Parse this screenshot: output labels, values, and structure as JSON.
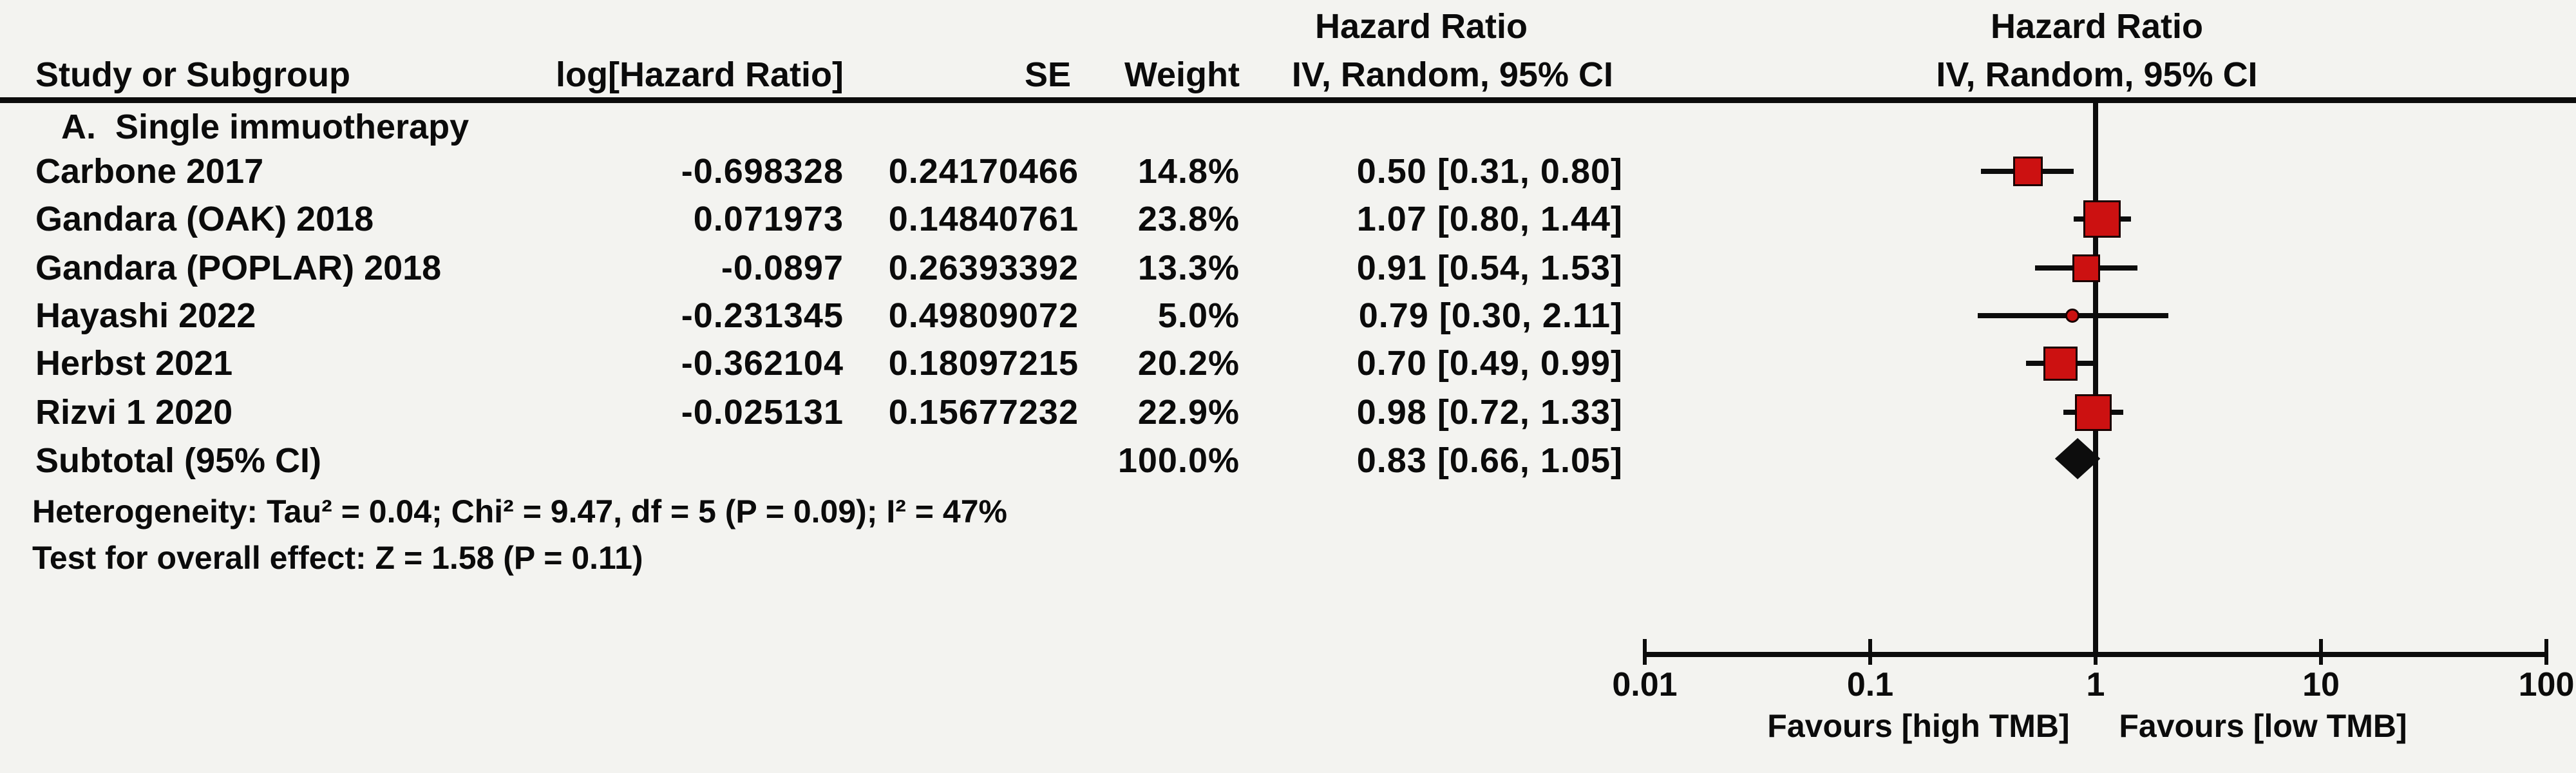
{
  "header": {
    "effect_title_left": "Hazard Ratio",
    "study_col": "Study or Subgroup",
    "log_hr_col": "log[Hazard Ratio]",
    "se_col": "SE",
    "weight_col": "Weight",
    "ci_col": "IV, Random, 95% CI",
    "effect_title_right": "Hazard Ratio",
    "method_right": "IV, Random, 95% CI"
  },
  "colors": {
    "marker_red": "#cc1111",
    "diamond_black": "#0d0d0d",
    "line_black": "#0c0c0c",
    "background": "#f3f3f0"
  },
  "chart_data": {
    "type": "scatter",
    "subtype": "forest_plot_meta_analysis",
    "title": "Hazard Ratio",
    "method": "IV, Random, 95% CI",
    "x_scale": "log10",
    "x_range": [
      0.01,
      100
    ],
    "x_ticks": [
      0.01,
      0.1,
      1,
      10,
      100
    ],
    "x_tick_labels": [
      "0.01",
      "0.1",
      "1",
      "10",
      "100"
    ],
    "favours_left": "Favours [high TMB]",
    "favours_right": "Favours [low TMB]",
    "subgroup": "A.  Single immuotherapy",
    "studies": [
      {
        "name": "Carbone 2017",
        "log_hr": "-0.698328",
        "se": "0.24170466",
        "weight": "14.8%",
        "weight_pct": 14.8,
        "hr": 0.5,
        "ci_low": 0.31,
        "ci_high": 0.8,
        "ci_text": "0.50 [0.31, 0.80]"
      },
      {
        "name": "Gandara (OAK) 2018",
        "log_hr": "0.071973",
        "se": "0.14840761",
        "weight": "23.8%",
        "weight_pct": 23.8,
        "hr": 1.07,
        "ci_low": 0.8,
        "ci_high": 1.44,
        "ci_text": "1.07 [0.80, 1.44]"
      },
      {
        "name": "Gandara (POPLAR) 2018",
        "log_hr": "-0.0897",
        "se": "0.26393392",
        "weight": "13.3%",
        "weight_pct": 13.3,
        "hr": 0.91,
        "ci_low": 0.54,
        "ci_high": 1.53,
        "ci_text": "0.91 [0.54, 1.53]"
      },
      {
        "name": "Hayashi 2022",
        "log_hr": "-0.231345",
        "se": "0.49809072",
        "weight": "5.0%",
        "weight_pct": 5.0,
        "hr": 0.79,
        "ci_low": 0.3,
        "ci_high": 2.11,
        "ci_text": "0.79 [0.30, 2.11]"
      },
      {
        "name": "Herbst 2021",
        "log_hr": "-0.362104",
        "se": "0.18097215",
        "weight": "20.2%",
        "weight_pct": 20.2,
        "hr": 0.7,
        "ci_low": 0.49,
        "ci_high": 0.99,
        "ci_text": "0.70 [0.49, 0.99]"
      },
      {
        "name": "Rizvi 1 2020",
        "log_hr": "-0.025131",
        "se": "0.15677232",
        "weight": "22.9%",
        "weight_pct": 22.9,
        "hr": 0.98,
        "ci_low": 0.72,
        "ci_high": 1.33,
        "ci_text": "0.98 [0.72, 1.33]"
      }
    ],
    "subtotal": {
      "label": "Subtotal (95% CI)",
      "weight": "100.0%",
      "hr": 0.83,
      "ci_low": 0.66,
      "ci_high": 1.05,
      "ci_text": "0.83 [0.66, 1.05]"
    },
    "heterogeneity": "Heterogeneity: Tau² = 0.04; Chi² = 9.47, df = 5 (P = 0.09); I² = 47%",
    "test_overall": "Test for overall effect: Z = 1.58 (P = 0.11)"
  }
}
